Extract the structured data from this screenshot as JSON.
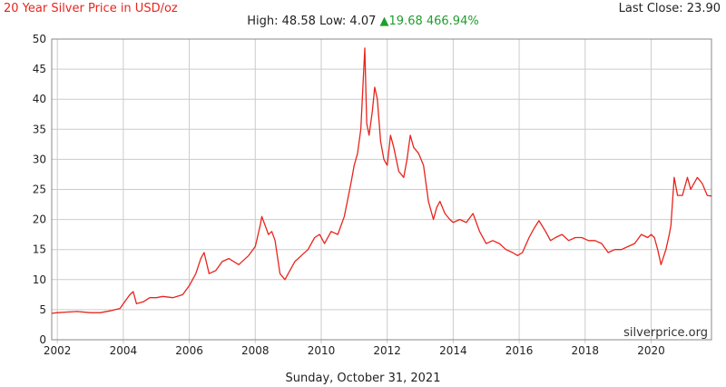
{
  "header": {
    "title": "20 Year Silver Price in USD/oz",
    "last_close": "Last Close: 23.90",
    "high_label": "High: 48.58",
    "low_label": "Low: 4.07",
    "change_arrow": "▲",
    "change_text": "19.68 466.94%"
  },
  "footer": {
    "date": "Sunday, October 31, 2021"
  },
  "colors": {
    "line": "#e8241d",
    "grid": "#cccccc",
    "up": "#1f9e2b",
    "title": "#e8241d"
  },
  "chart_data": {
    "type": "line",
    "title": "20 Year Silver Price in USD/oz",
    "xlabel": "",
    "ylabel": "",
    "xlim": [
      2001.83,
      2021.83
    ],
    "ylim": [
      0,
      50
    ],
    "grid": true,
    "xticks": [
      "2002",
      "2004",
      "2006",
      "2008",
      "2010",
      "2012",
      "2014",
      "2016",
      "2018",
      "2020"
    ],
    "yticks": [
      "0",
      "5",
      "10",
      "15",
      "20",
      "25",
      "30",
      "35",
      "40",
      "45",
      "50"
    ],
    "annotation": "silverprice.org",
    "series": [
      {
        "x": [
          2001.83,
          2002.0,
          2002.3,
          2002.6,
          2003.0,
          2003.3,
          2003.6,
          2003.9,
          2004.0,
          2004.2,
          2004.3,
          2004.4,
          2004.6,
          2004.8,
          2005.0,
          2005.2,
          2005.5,
          2005.8,
          2006.0,
          2006.2,
          2006.35,
          2006.45,
          2006.6,
          2006.8,
          2007.0,
          2007.2,
          2007.5,
          2007.8,
          2008.0,
          2008.15,
          2008.2,
          2008.4,
          2008.5,
          2008.6,
          2008.75,
          2008.9,
          2009.0,
          2009.2,
          2009.4,
          2009.6,
          2009.8,
          2009.95,
          2010.1,
          2010.3,
          2010.5,
          2010.7,
          2010.9,
          2011.0,
          2011.1,
          2011.2,
          2011.32,
          2011.38,
          2011.45,
          2011.55,
          2011.62,
          2011.7,
          2011.8,
          2011.9,
          2012.0,
          2012.1,
          2012.2,
          2012.35,
          2012.5,
          2012.6,
          2012.7,
          2012.8,
          2012.95,
          2013.1,
          2013.25,
          2013.4,
          2013.5,
          2013.6,
          2013.75,
          2013.9,
          2014.0,
          2014.2,
          2014.4,
          2014.6,
          2014.8,
          2015.0,
          2015.2,
          2015.4,
          2015.6,
          2015.8,
          2015.95,
          2016.1,
          2016.3,
          2016.45,
          2016.6,
          2016.8,
          2016.95,
          2017.1,
          2017.3,
          2017.5,
          2017.7,
          2017.9,
          2018.1,
          2018.3,
          2018.5,
          2018.7,
          2018.9,
          2019.1,
          2019.3,
          2019.5,
          2019.7,
          2019.9,
          2020.0,
          2020.1,
          2020.2,
          2020.3,
          2020.45,
          2020.55,
          2020.6,
          2020.7,
          2020.8,
          2020.95,
          2021.1,
          2021.2,
          2021.3,
          2021.4,
          2021.55,
          2021.7,
          2021.83
        ],
        "values": [
          4.4,
          4.5,
          4.6,
          4.7,
          4.5,
          4.5,
          4.8,
          5.2,
          6.0,
          7.5,
          8.0,
          6.0,
          6.3,
          7.0,
          7.0,
          7.2,
          7.0,
          7.5,
          9.0,
          11.0,
          13.5,
          14.5,
          11.0,
          11.5,
          13.0,
          13.5,
          12.5,
          14.0,
          15.5,
          19.0,
          20.5,
          17.5,
          18.0,
          16.5,
          11.0,
          10.0,
          11.0,
          13.0,
          14.0,
          15.0,
          17.0,
          17.5,
          16.0,
          18.0,
          17.5,
          20.5,
          26.0,
          29.0,
          31.0,
          35.0,
          48.5,
          36.0,
          34.0,
          38.0,
          42.0,
          40.0,
          33.0,
          30.0,
          29.0,
          34.0,
          32.0,
          28.0,
          27.0,
          30.0,
          34.0,
          32.0,
          31.0,
          29.0,
          23.0,
          20.0,
          22.0,
          23.0,
          21.0,
          20.0,
          19.5,
          20.0,
          19.5,
          21.0,
          18.0,
          16.0,
          16.5,
          16.0,
          15.0,
          14.5,
          14.0,
          14.5,
          17.0,
          18.5,
          19.8,
          18.0,
          16.5,
          17.0,
          17.5,
          16.5,
          17.0,
          17.0,
          16.5,
          16.5,
          16.0,
          14.5,
          15.0,
          15.0,
          15.5,
          16.0,
          17.5,
          17.0,
          17.5,
          17.0,
          15.0,
          12.5,
          15.0,
          17.5,
          19.0,
          27.0,
          24.0,
          24.0,
          27.0,
          25.0,
          26.0,
          27.0,
          26.0,
          24.0,
          23.9
        ]
      }
    ]
  }
}
